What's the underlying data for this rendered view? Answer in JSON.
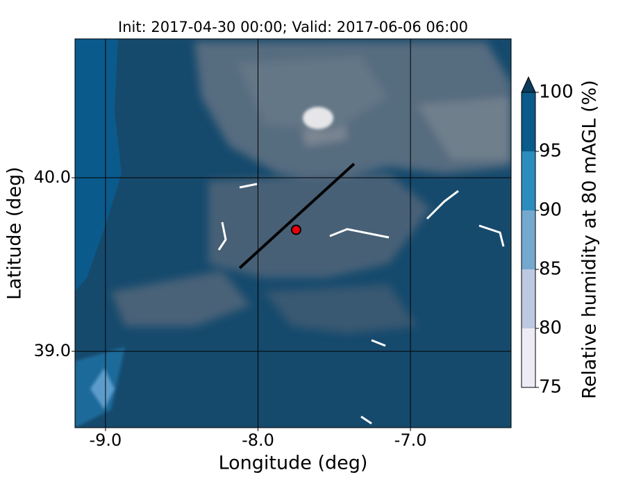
{
  "chart_data": {
    "type": "contour-map",
    "title": "Init: 2017-04-30 00:00; Valid: 2017-06-06 06:00",
    "xlabel": "Longitude (deg)",
    "ylabel": "Latitude (deg)",
    "xlim": [
      -9.2,
      -6.34
    ],
    "ylim": [
      38.56,
      40.8
    ],
    "xticks": [
      {
        "value": -9,
        "label": "-9.0"
      },
      {
        "value": -8,
        "label": "-8.0"
      },
      {
        "value": -7,
        "label": "-7.0"
      }
    ],
    "yticks": [
      {
        "value": 39,
        "label": "39.0"
      },
      {
        "value": 40,
        "label": "40.0"
      }
    ],
    "grid": true,
    "transect": {
      "x": [
        -8.12,
        -7.37
      ],
      "y": [
        39.48,
        40.08
      ],
      "color": "#000000"
    },
    "point": {
      "x": -7.75,
      "y": 39.7,
      "color": "#e8000b"
    },
    "colorbar": {
      "label": "Relative humidity at 80 mAGL (%)",
      "levels": [
        75,
        80,
        85,
        90,
        95,
        100
      ],
      "colors": [
        "#efebf4",
        "#bdc9e1",
        "#74a9cf",
        "#2b8cbe",
        "#0a5a8a"
      ],
      "extend_color": "#0b3b5c",
      "ticks": [
        75,
        80,
        85,
        90,
        95,
        100
      ]
    }
  }
}
